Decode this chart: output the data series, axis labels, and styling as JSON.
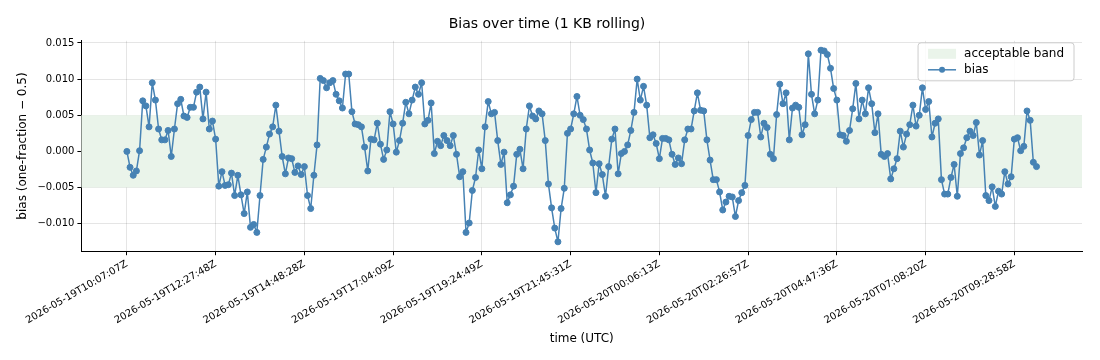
{
  "chart_data": {
    "type": "line",
    "title": "Bias over time (1 KB rolling)",
    "xlabel": "time (UTC)",
    "ylabel": "bias (one-fraction − 0.5)",
    "categories": [
      "2026-05-19T10:07:07Z",
      null,
      null,
      null,
      null,
      null,
      null,
      null,
      null,
      null,
      null,
      null,
      null,
      null,
      null,
      null,
      null,
      null,
      null,
      null,
      null,
      null,
      null,
      null,
      null,
      null,
      null,
      null,
      "2026-05-19T12:27:48Z",
      null,
      null,
      null,
      null,
      null,
      null,
      null,
      null,
      null,
      null,
      null,
      null,
      null,
      null,
      null,
      null,
      null,
      null,
      null,
      null,
      null,
      null,
      null,
      null,
      null,
      null,
      null,
      "2026-05-19T14:48:28Z",
      null,
      null,
      null,
      null,
      null,
      null,
      null,
      null,
      null,
      null,
      null,
      null,
      null,
      null,
      null,
      null,
      null,
      null,
      null,
      null,
      null,
      null,
      null,
      null,
      null,
      null,
      null,
      "2026-05-19T17:04:09Z",
      null,
      null,
      null,
      null,
      null,
      null,
      null,
      null,
      null,
      null,
      null,
      null,
      null,
      null,
      null,
      null,
      null,
      null,
      null,
      null,
      null,
      null,
      null,
      null,
      null,
      null,
      null,
      "2026-05-19T19:24:49Z",
      null,
      null,
      null,
      null,
      null,
      null,
      null,
      null,
      null,
      null,
      null,
      null,
      null,
      null,
      null,
      null,
      null,
      null,
      null,
      null,
      null,
      null,
      null,
      null,
      null,
      null,
      null,
      "2026-05-19T21:45:31Z",
      null,
      null,
      null,
      null,
      null,
      null,
      null,
      null,
      null,
      null,
      null,
      null,
      null,
      null,
      null,
      null,
      null,
      null,
      null,
      null,
      null,
      null,
      null,
      null,
      null,
      null,
      null,
      "2026-05-20T00:06:13Z",
      null,
      null,
      null,
      null,
      null,
      null,
      null,
      null,
      null,
      null,
      null,
      null,
      null,
      null,
      null,
      null,
      null,
      null,
      null,
      null,
      null,
      null,
      null,
      null,
      null,
      null,
      null,
      "2026-05-20T02:26:57Z",
      null,
      null,
      null,
      null,
      null,
      null,
      null,
      null,
      null,
      null,
      null,
      null,
      null,
      null,
      null,
      null,
      null,
      null,
      null,
      null,
      null,
      null,
      null,
      null,
      null,
      null,
      null,
      "2026-05-20T04:47:36Z",
      null,
      null,
      null,
      null,
      null,
      null,
      null,
      null,
      null,
      null,
      null,
      null,
      null,
      null,
      null,
      null,
      null,
      null,
      null,
      null,
      null,
      null,
      null,
      null,
      null,
      null,
      null,
      "2026-05-20T07:08:20Z",
      null,
      null,
      null,
      null,
      null,
      null,
      null,
      null,
      null,
      null,
      null,
      null,
      null,
      null,
      null,
      null,
      null,
      null,
      null,
      null,
      null,
      null,
      null,
      null,
      null,
      null,
      null,
      "2026-05-20T09:28:58Z",
      null,
      null,
      null,
      null,
      null,
      null,
      null
    ],
    "series": [
      {
        "name": "bias",
        "color": "#4682b4",
        "values": [
          0,
          -0.0022,
          -0.0033,
          -0.0027,
          0.0001,
          0.007,
          0.0063,
          0.0034,
          0.0095,
          0.0071,
          0.0031,
          0.0016,
          0.0016,
          0.0029,
          -0.0007,
          0.0031,
          0.0066,
          0.0072,
          0.0049,
          0.0047,
          0.0061,
          0.0061,
          0.0082,
          0.0089,
          0.0045,
          0.0082,
          0.0031,
          0.0042,
          0.0017,
          -0.0048,
          -0.0028,
          -0.0047,
          -0.0046,
          -0.003,
          -0.0061,
          -0.0033,
          -0.006,
          -0.0086,
          -0.0056,
          -0.0105,
          -0.0101,
          -0.0112,
          -0.0061,
          -0.0011,
          0.0006,
          0.0024,
          0.0034,
          0.0064,
          0.0028,
          -0.0007,
          -0.0031,
          -0.0009,
          -0.001,
          -0.0029,
          -0.002,
          -0.0032,
          -0.0021,
          -0.0061,
          -0.0079,
          -0.0033,
          0.0009,
          0.0101,
          0.0098,
          0.0088,
          0.0095,
          0.0098,
          0.0079,
          0.007,
          0.006,
          0.0107,
          0.0107,
          0.0055,
          0.0038,
          0.0037,
          0.0034,
          0.0006,
          -0.0027,
          0.0017,
          0.0016,
          0.0039,
          0.001,
          -0.0011,
          0.0002,
          0.0055,
          0.0038,
          -0.0001,
          0.0015,
          0.0039,
          0.0068,
          0.0052,
          0.0071,
          0.0089,
          0.0079,
          0.0095,
          0.0038,
          0.0043,
          0.0067,
          -0.0003,
          0.0014,
          0.0008,
          0.0022,
          0.0015,
          0.0008,
          0.0022,
          -0.0004,
          -0.0035,
          -0.0028,
          -0.0112,
          -0.0099,
          -0.0054,
          -0.0036,
          0.0002,
          -0.0024,
          0.0034,
          0.0069,
          0.0052,
          0.0054,
          0.0015,
          -0.0018,
          -0.0001,
          -0.0071,
          -0.006,
          -0.0048,
          -0.0004,
          0.0003,
          -0.0024,
          0.0031,
          0.0063,
          0.0049,
          0.0045,
          0.0056,
          0.0052,
          0.0015,
          -0.0045,
          -0.0078,
          -0.0106,
          -0.0125,
          -0.0079,
          -0.0051,
          0.0025,
          0.0031,
          0.0052,
          0.0076,
          0.005,
          0.0044,
          0.0031,
          0.0002,
          -0.0016,
          -0.0057,
          -0.0017,
          -0.0032,
          -0.0062,
          -0.0021,
          0.0017,
          0.0031,
          -0.0031,
          -0.0003,
          0.0,
          0.0009,
          0.0029,
          0.0054,
          0.01,
          0.0071,
          0.009,
          0.0064,
          0.0019,
          0.0023,
          0.0011,
          -0.001,
          0.0018,
          0.0018,
          0.0016,
          -0.0004,
          -0.0018,
          -0.0009,
          -0.0017,
          0.0016,
          0.0031,
          0.0031,
          0.0056,
          0.0081,
          0.0057,
          0.0056,
          0.0016,
          -0.0012,
          -0.0039,
          -0.0039,
          -0.0056,
          -0.0081,
          -0.007,
          -0.0062,
          -0.0063,
          -0.009,
          -0.0068,
          -0.0057,
          -0.0047,
          0.0022,
          0.0044,
          0.0054,
          0.0054,
          0.002,
          0.0039,
          0.0033,
          -0.0004,
          -0.001,
          0.0051,
          0.0093,
          0.0066,
          0.0081,
          0.0016,
          0.006,
          0.0064,
          0.0061,
          0.0023,
          0.0037,
          0.0135,
          0.0079,
          0.0052,
          0.0071,
          0.014,
          0.0139,
          0.0134,
          0.0115,
          0.0087,
          0.0071,
          0.0023,
          0.0022,
          0.0014,
          0.0029,
          0.0059,
          0.0094,
          0.0045,
          0.0071,
          0.0052,
          0.0088,
          0.0066,
          0.0026,
          0.0052,
          -0.0004,
          -0.0007,
          -0.0003,
          -0.0038,
          -0.0024,
          -0.001,
          0.0028,
          0.0006,
          0.0024,
          0.0037,
          0.0064,
          0.0035,
          0.005,
          0.0088,
          0.0058,
          0.0069,
          0.002,
          0.0039,
          0.0045,
          -0.0039,
          -0.0059,
          -0.0059,
          -0.0036,
          -0.0018,
          -0.0062,
          -0.0003,
          0.0005,
          0.0019,
          0.0028,
          0.0022,
          0.004,
          -0.0005,
          0.0015,
          -0.0061,
          -0.0068,
          -0.0049,
          -0.0076,
          -0.0055,
          -0.0059,
          -0.0028,
          -0.0045,
          -0.0035,
          0.0017,
          0.0019,
          0.0001,
          0.0007,
          0.0056,
          0.0043,
          -0.0015,
          -0.0021
        ]
      }
    ],
    "ylim": [
      -0.0138,
      0.0153
    ],
    "yticks": [
      {
        "value": -0.01,
        "label": "−0.010"
      },
      {
        "value": -0.005,
        "label": "−0.005"
      },
      {
        "value": 0,
        "label": "0.000"
      },
      {
        "value": 0.005,
        "label": "0.005"
      },
      {
        "value": 0.01,
        "label": "0.010"
      },
      {
        "value": 0.015,
        "label": "0.015"
      }
    ],
    "bands": [
      {
        "axis": "y",
        "from": -0.005,
        "to": 0.005,
        "label": "acceptable band",
        "color": "#eaf4ea"
      }
    ],
    "grid": true,
    "legend": "top right",
    "marker": "circle",
    "line_style": "solid"
  }
}
